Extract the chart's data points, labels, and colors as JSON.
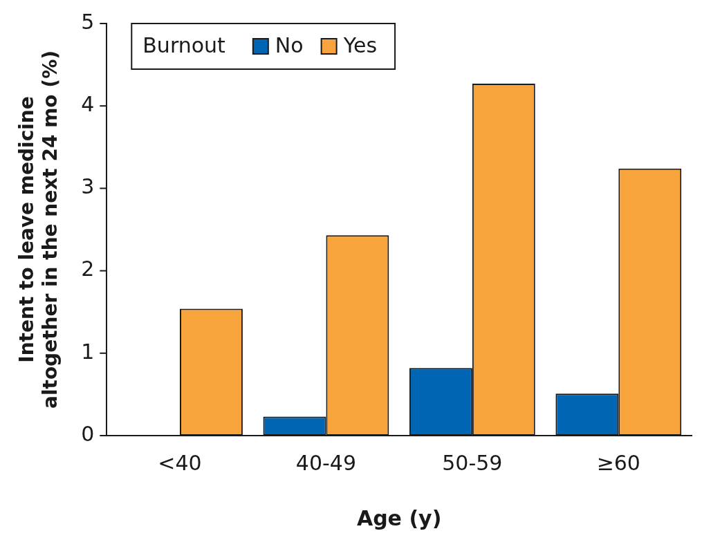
{
  "chart_data": {
    "type": "bar",
    "xlabel": "Age (y)",
    "ylabel": "Intent to leave medicine altogether in the next 24 mo (%)",
    "legend_title": "Burnout",
    "legend": "top left",
    "grid": false,
    "categories": [
      "<40",
      "40-49",
      "50-59",
      "≥60"
    ],
    "ylim": [
      0,
      5
    ],
    "yticks": [
      0,
      1,
      2,
      3,
      4,
      5
    ],
    "series": [
      {
        "name": "No",
        "color": "#0066b3",
        "values": [
          null,
          0.23,
          0.82,
          0.51
        ]
      },
      {
        "name": "Yes",
        "color": "#f7a43c",
        "values": [
          1.54,
          2.43,
          4.27,
          3.24
        ]
      }
    ]
  }
}
